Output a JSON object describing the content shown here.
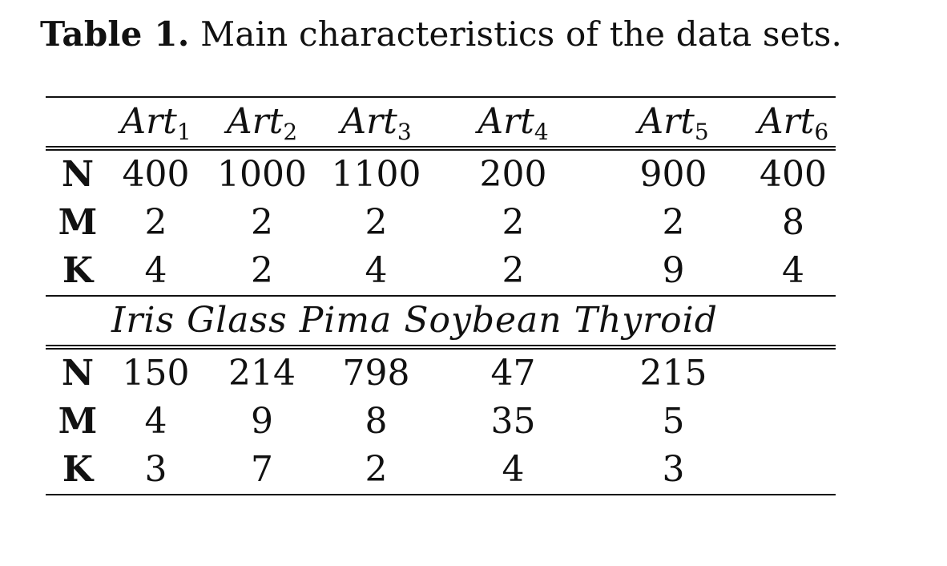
{
  "caption": {
    "label": "Table 1.",
    "text": "Main characteristics of the data sets."
  },
  "table1": {
    "headers": [
      {
        "base": "Art",
        "sub": "1"
      },
      {
        "base": "Art",
        "sub": "2"
      },
      {
        "base": "Art",
        "sub": "3"
      },
      {
        "base": "Art",
        "sub": "4"
      },
      {
        "base": "Art",
        "sub": "5"
      },
      {
        "base": "Art",
        "sub": "6"
      }
    ],
    "rows": [
      {
        "label": "N",
        "values": [
          "400",
          "1000",
          "1100",
          "200",
          "900",
          "400"
        ]
      },
      {
        "label": "M",
        "values": [
          "2",
          "2",
          "2",
          "2",
          "2",
          "8"
        ]
      },
      {
        "label": "K",
        "values": [
          "4",
          "2",
          "4",
          "2",
          "9",
          "4"
        ]
      }
    ]
  },
  "table2": {
    "headers": [
      "Iris",
      "Glass",
      "Pima",
      "Soybean",
      "Thyroid"
    ],
    "rows": [
      {
        "label": "N",
        "values": [
          "150",
          "214",
          "798",
          "47",
          "215"
        ]
      },
      {
        "label": "M",
        "values": [
          "4",
          "9",
          "8",
          "35",
          "5"
        ]
      },
      {
        "label": "K",
        "values": [
          "3",
          "7",
          "2",
          "4",
          "3"
        ]
      }
    ]
  }
}
